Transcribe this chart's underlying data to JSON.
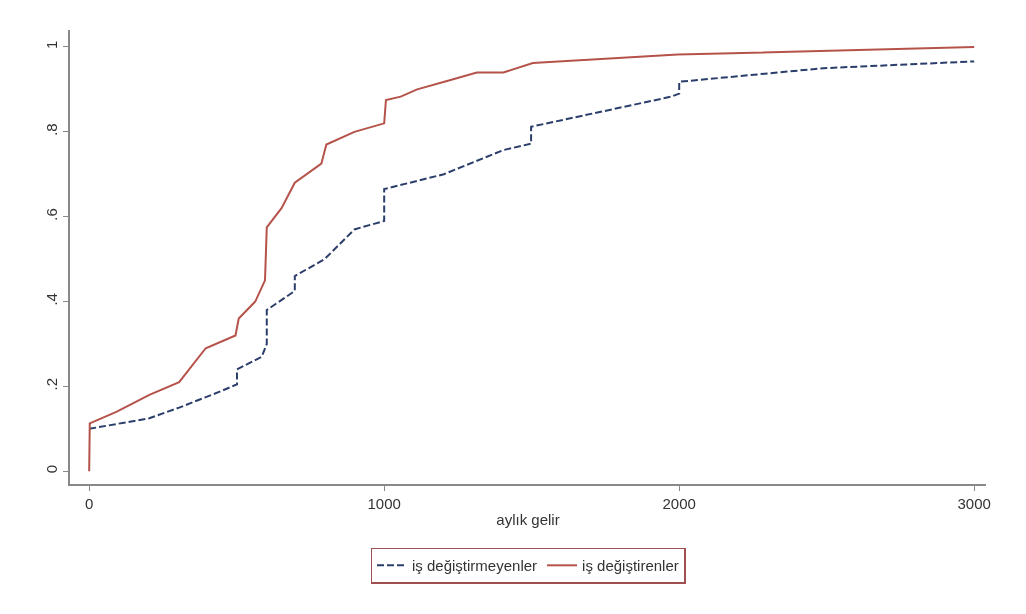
{
  "chart_data": {
    "type": "line",
    "xlabel": "aylık gelir",
    "xlim": [
      -65,
      3040
    ],
    "xticks": [
      0,
      1000,
      2000,
      3000
    ],
    "ylim": [
      -0.03,
      1.04
    ],
    "yticks": [
      0,
      {
        "value": 0.2,
        "label": ".2"
      },
      {
        "value": 0.4,
        "label": ".4"
      },
      {
        "value": 0.6,
        "label": ".6"
      },
      {
        "value": 0.8,
        "label": ".8"
      },
      1
    ],
    "legend": "bottom",
    "marker": "none",
    "series": [
      {
        "name": "iş değiştirmeyenler",
        "color": "#2b3e6b",
        "line_style": "dashed",
        "x": [
          0,
          204,
          305,
          451,
          501,
          501,
          585,
          602,
          602,
          697,
          697,
          798,
          899,
          1000,
          1000,
          1202,
          1404,
          1498,
          1498,
          1974,
          2000,
          2000,
          2489,
          3000
        ],
        "values": [
          0.1,
          0.125,
          0.15,
          0.19,
          0.205,
          0.24,
          0.27,
          0.3,
          0.38,
          0.425,
          0.46,
          0.5,
          0.57,
          0.59,
          0.665,
          0.7,
          0.757,
          0.772,
          0.812,
          0.883,
          0.89,
          0.918,
          0.95,
          0.966
        ]
      },
      {
        "name": "iş değiştirenler",
        "color": "#b5534a",
        "line_style": "solid",
        "x": [
          0,
          2,
          92,
          204,
          305,
          395,
          496,
          507,
          563,
          596,
          602,
          652,
          697,
          787,
          804,
          899,
          1000,
          1006,
          1056,
          1112,
          1213,
          1314,
          1404,
          1504,
          1995,
          3000
        ],
        "values": [
          0,
          0.113,
          0.14,
          0.18,
          0.21,
          0.29,
          0.32,
          0.36,
          0.4,
          0.45,
          0.575,
          0.62,
          0.68,
          0.725,
          0.77,
          0.8,
          0.82,
          0.875,
          0.883,
          0.9,
          0.92,
          0.94,
          0.94,
          0.962,
          0.982,
          1.0
        ]
      }
    ]
  }
}
